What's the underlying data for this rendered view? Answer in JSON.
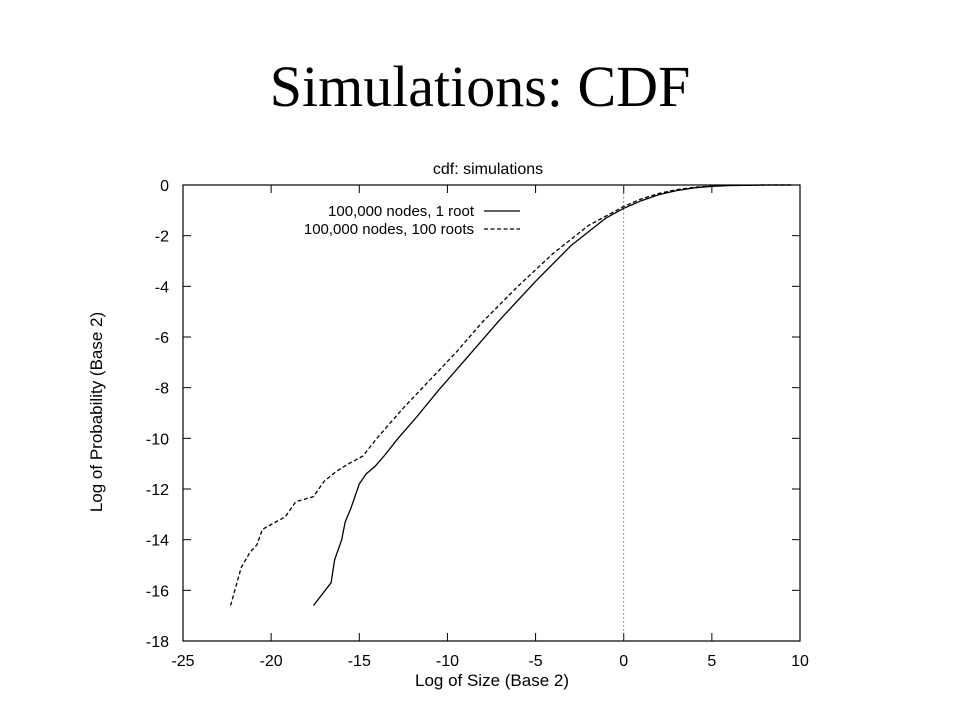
{
  "slide": {
    "title": "Simulations: CDF"
  },
  "chart_data": {
    "type": "line",
    "title": "cdf: simulations",
    "xlabel": "Log of Size (Base 2)",
    "ylabel": "Log of Probability (Base 2)",
    "xlim": [
      -25,
      10
    ],
    "ylim": [
      -18,
      0
    ],
    "xticks": [
      -25,
      -20,
      -15,
      -10,
      -5,
      0,
      5,
      10
    ],
    "yticks": [
      0,
      -2,
      -4,
      -6,
      -8,
      -10,
      -12,
      -14,
      -16,
      -18
    ],
    "grid": false,
    "legend_position": "top-left",
    "reference_lines": [
      {
        "axis": "x",
        "value": 0,
        "style": "dotted"
      }
    ],
    "series": [
      {
        "name": "100,000 nodes, 1 root",
        "style": "solid",
        "points": [
          [
            -17.6,
            -16.6
          ],
          [
            -16.6,
            -15.7
          ],
          [
            -16.4,
            -14.8
          ],
          [
            -16.0,
            -14.0
          ],
          [
            -15.8,
            -13.3
          ],
          [
            -15.5,
            -12.8
          ],
          [
            -15.2,
            -12.2
          ],
          [
            -15.0,
            -11.8
          ],
          [
            -14.6,
            -11.4
          ],
          [
            -14.1,
            -11.1
          ],
          [
            -13.6,
            -10.7
          ],
          [
            -12.8,
            -10.0
          ],
          [
            -11.8,
            -9.2
          ],
          [
            -10.5,
            -8.1
          ],
          [
            -9.0,
            -6.9
          ],
          [
            -7.0,
            -5.3
          ],
          [
            -5.0,
            -3.8
          ],
          [
            -3.0,
            -2.4
          ],
          [
            -1.0,
            -1.3
          ],
          [
            0.0,
            -0.92
          ],
          [
            1.0,
            -0.62
          ],
          [
            2.0,
            -0.38
          ],
          [
            3.0,
            -0.22
          ],
          [
            4.0,
            -0.11
          ],
          [
            5.0,
            -0.05
          ],
          [
            6.0,
            -0.02
          ],
          [
            7.0,
            -0.01
          ],
          [
            8.0,
            0.0
          ],
          [
            9.5,
            0.0
          ]
        ]
      },
      {
        "name": "100,000 nodes, 100 roots",
        "style": "dashed",
        "points": [
          [
            -22.3,
            -16.6
          ],
          [
            -21.7,
            -15.1
          ],
          [
            -21.2,
            -14.5
          ],
          [
            -20.8,
            -14.2
          ],
          [
            -20.5,
            -13.6
          ],
          [
            -20.0,
            -13.4
          ],
          [
            -19.2,
            -13.1
          ],
          [
            -18.6,
            -12.5
          ],
          [
            -17.6,
            -12.3
          ],
          [
            -17.0,
            -11.7
          ],
          [
            -16.3,
            -11.3
          ],
          [
            -15.6,
            -11.0
          ],
          [
            -14.8,
            -10.7
          ],
          [
            -14.0,
            -10.0
          ],
          [
            -12.5,
            -8.8
          ],
          [
            -11.0,
            -7.7
          ],
          [
            -9.5,
            -6.6
          ],
          [
            -8.0,
            -5.4
          ],
          [
            -6.0,
            -4.0
          ],
          [
            -4.0,
            -2.7
          ],
          [
            -2.0,
            -1.6
          ],
          [
            0.0,
            -0.85
          ],
          [
            1.0,
            -0.55
          ],
          [
            2.0,
            -0.33
          ],
          [
            3.0,
            -0.18
          ],
          [
            4.0,
            -0.09
          ],
          [
            5.0,
            -0.04
          ],
          [
            6.0,
            -0.02
          ],
          [
            7.0,
            -0.01
          ],
          [
            8.0,
            0.0
          ],
          [
            9.5,
            0.0
          ]
        ]
      }
    ]
  }
}
